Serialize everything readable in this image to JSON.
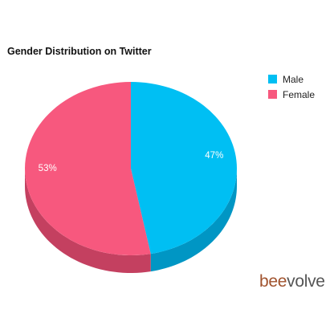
{
  "chart_data": {
    "type": "pie",
    "title": "Gender Distribution on Twitter",
    "slices": [
      {
        "label": "Male",
        "value": 47,
        "data_label": "47%",
        "color": "#00bff3",
        "side_color": "#0096c4"
      },
      {
        "label": "Female",
        "value": 53,
        "data_label": "53%",
        "color": "#f7587e",
        "side_color": "#c44060"
      }
    ],
    "three_d": true,
    "legend_position": "top-right"
  },
  "brand": {
    "part1": "bee",
    "part2": "volve"
  }
}
